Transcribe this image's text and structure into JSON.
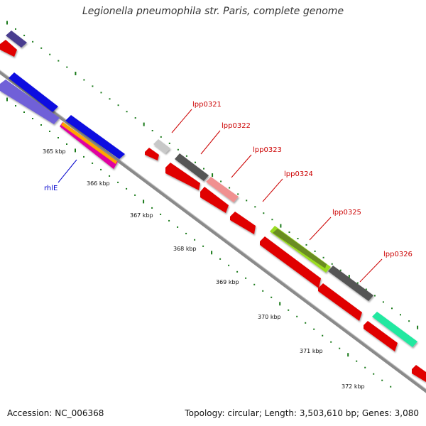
{
  "title": "Legionella pneumophila str. Paris, complete genome",
  "accession": "Accession: NC_006368",
  "summary": "Topology: circular; Length: 3,503,610 bp; Genes: 3,080",
  "ticks": [
    "365 kbp",
    "366 kbp",
    "367 kbp",
    "368 kbp",
    "369 kbp",
    "370 kbp",
    "371 kbp",
    "372 kbp"
  ],
  "genes": [
    {
      "label": "lpp0321",
      "color": "#cc0000"
    },
    {
      "label": "lpp0322",
      "color": "#cc0000"
    },
    {
      "label": "lpp0323",
      "color": "#cc0000"
    },
    {
      "label": "lpp0324",
      "color": "#cc0000"
    },
    {
      "label": "lpp0325",
      "color": "#cc0000"
    },
    {
      "label": "lpp0326",
      "color": "#cc0000"
    },
    {
      "label": "rhlE",
      "color": "#0000cc"
    }
  ]
}
